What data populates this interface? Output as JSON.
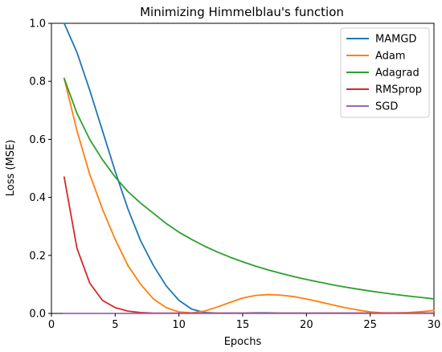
{
  "chart_data": {
    "type": "line",
    "title": "Minimizing Himmelblau's function",
    "xlabel": "Epochs",
    "ylabel": "Loss (MSE)",
    "xlim": [
      0,
      30
    ],
    "ylim": [
      0,
      1.0
    ],
    "xticks": [
      0,
      5,
      10,
      15,
      20,
      25,
      30
    ],
    "yticks": [
      0.0,
      0.2,
      0.4,
      0.6,
      0.8,
      1.0
    ],
    "grid": false,
    "legend_position": "top-right",
    "x": [
      1,
      2,
      3,
      4,
      5,
      6,
      7,
      8,
      9,
      10,
      11,
      12,
      13,
      14,
      15,
      16,
      17,
      18,
      19,
      20,
      21,
      22,
      23,
      24,
      25,
      26,
      27,
      28,
      29,
      30
    ],
    "series": [
      {
        "name": "MAMGD",
        "color": "#1f77b4",
        "values": [
          1.0,
          0.9,
          0.77,
          0.63,
          0.49,
          0.36,
          0.25,
          0.165,
          0.095,
          0.045,
          0.015,
          0.003,
          0.001,
          0.001,
          0.001,
          0.002,
          0.002,
          0.001,
          0.001,
          0.001,
          0.001,
          0.001,
          0.001,
          0.001,
          0.001,
          0.001,
          0.001,
          0.001,
          0.001,
          0.001
        ]
      },
      {
        "name": "Adam",
        "color": "#ff7f0e",
        "values": [
          0.81,
          0.63,
          0.48,
          0.36,
          0.255,
          0.165,
          0.1,
          0.05,
          0.02,
          0.005,
          0.002,
          0.008,
          0.022,
          0.038,
          0.053,
          0.062,
          0.065,
          0.063,
          0.058,
          0.05,
          0.04,
          0.03,
          0.02,
          0.012,
          0.005,
          0.002,
          0.002,
          0.003,
          0.006,
          0.01
        ]
      },
      {
        "name": "Adagrad",
        "color": "#2ca02c",
        "values": [
          0.81,
          0.69,
          0.6,
          0.53,
          0.47,
          0.42,
          0.38,
          0.345,
          0.31,
          0.28,
          0.255,
          0.232,
          0.212,
          0.194,
          0.178,
          0.163,
          0.15,
          0.138,
          0.127,
          0.117,
          0.108,
          0.099,
          0.091,
          0.084,
          0.077,
          0.071,
          0.065,
          0.06,
          0.055,
          0.05
        ]
      },
      {
        "name": "RMSprop",
        "color": "#d62728",
        "values": [
          0.47,
          0.225,
          0.105,
          0.045,
          0.02,
          0.008,
          0.003,
          0.001,
          0.001,
          0.001,
          0.001,
          0.001,
          0.001,
          0.001,
          0.001,
          0.001,
          0.001,
          0.001,
          0.001,
          0.001,
          0.001,
          0.001,
          0.001,
          0.001,
          0.001,
          0.001,
          0.001,
          0.001,
          0.001,
          0.001
        ]
      },
      {
        "name": "SGD",
        "color": "#9467bd",
        "values": [
          0.0,
          0.0,
          0.0,
          0.0,
          0.0,
          0.0,
          0.0,
          0.0,
          0.0,
          0.0,
          0.0,
          0.0,
          0.0,
          0.0,
          0.0,
          0.0,
          0.0,
          0.0,
          0.0,
          0.0,
          0.0,
          0.0,
          0.0,
          0.0,
          0.0,
          0.0,
          0.0,
          0.0,
          0.0,
          0.0
        ]
      }
    ]
  }
}
